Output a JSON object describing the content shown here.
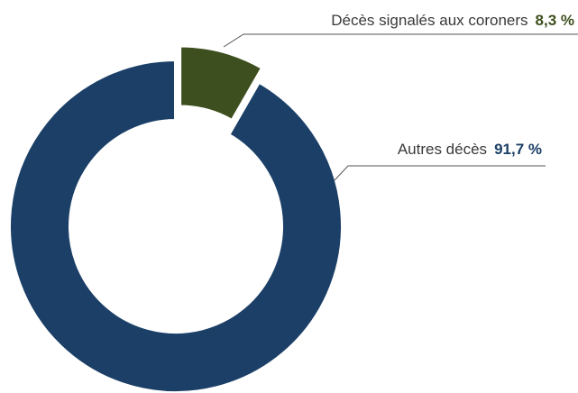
{
  "chart_data": {
    "type": "donut",
    "categories": [
      "Décès signalés aux coroners",
      "Autres décès"
    ],
    "values": [
      8.3,
      91.7
    ],
    "value_labels": [
      "8,3 %",
      "91,7 %"
    ],
    "colors": [
      "#3d4f1e",
      "#1b3f66"
    ]
  }
}
